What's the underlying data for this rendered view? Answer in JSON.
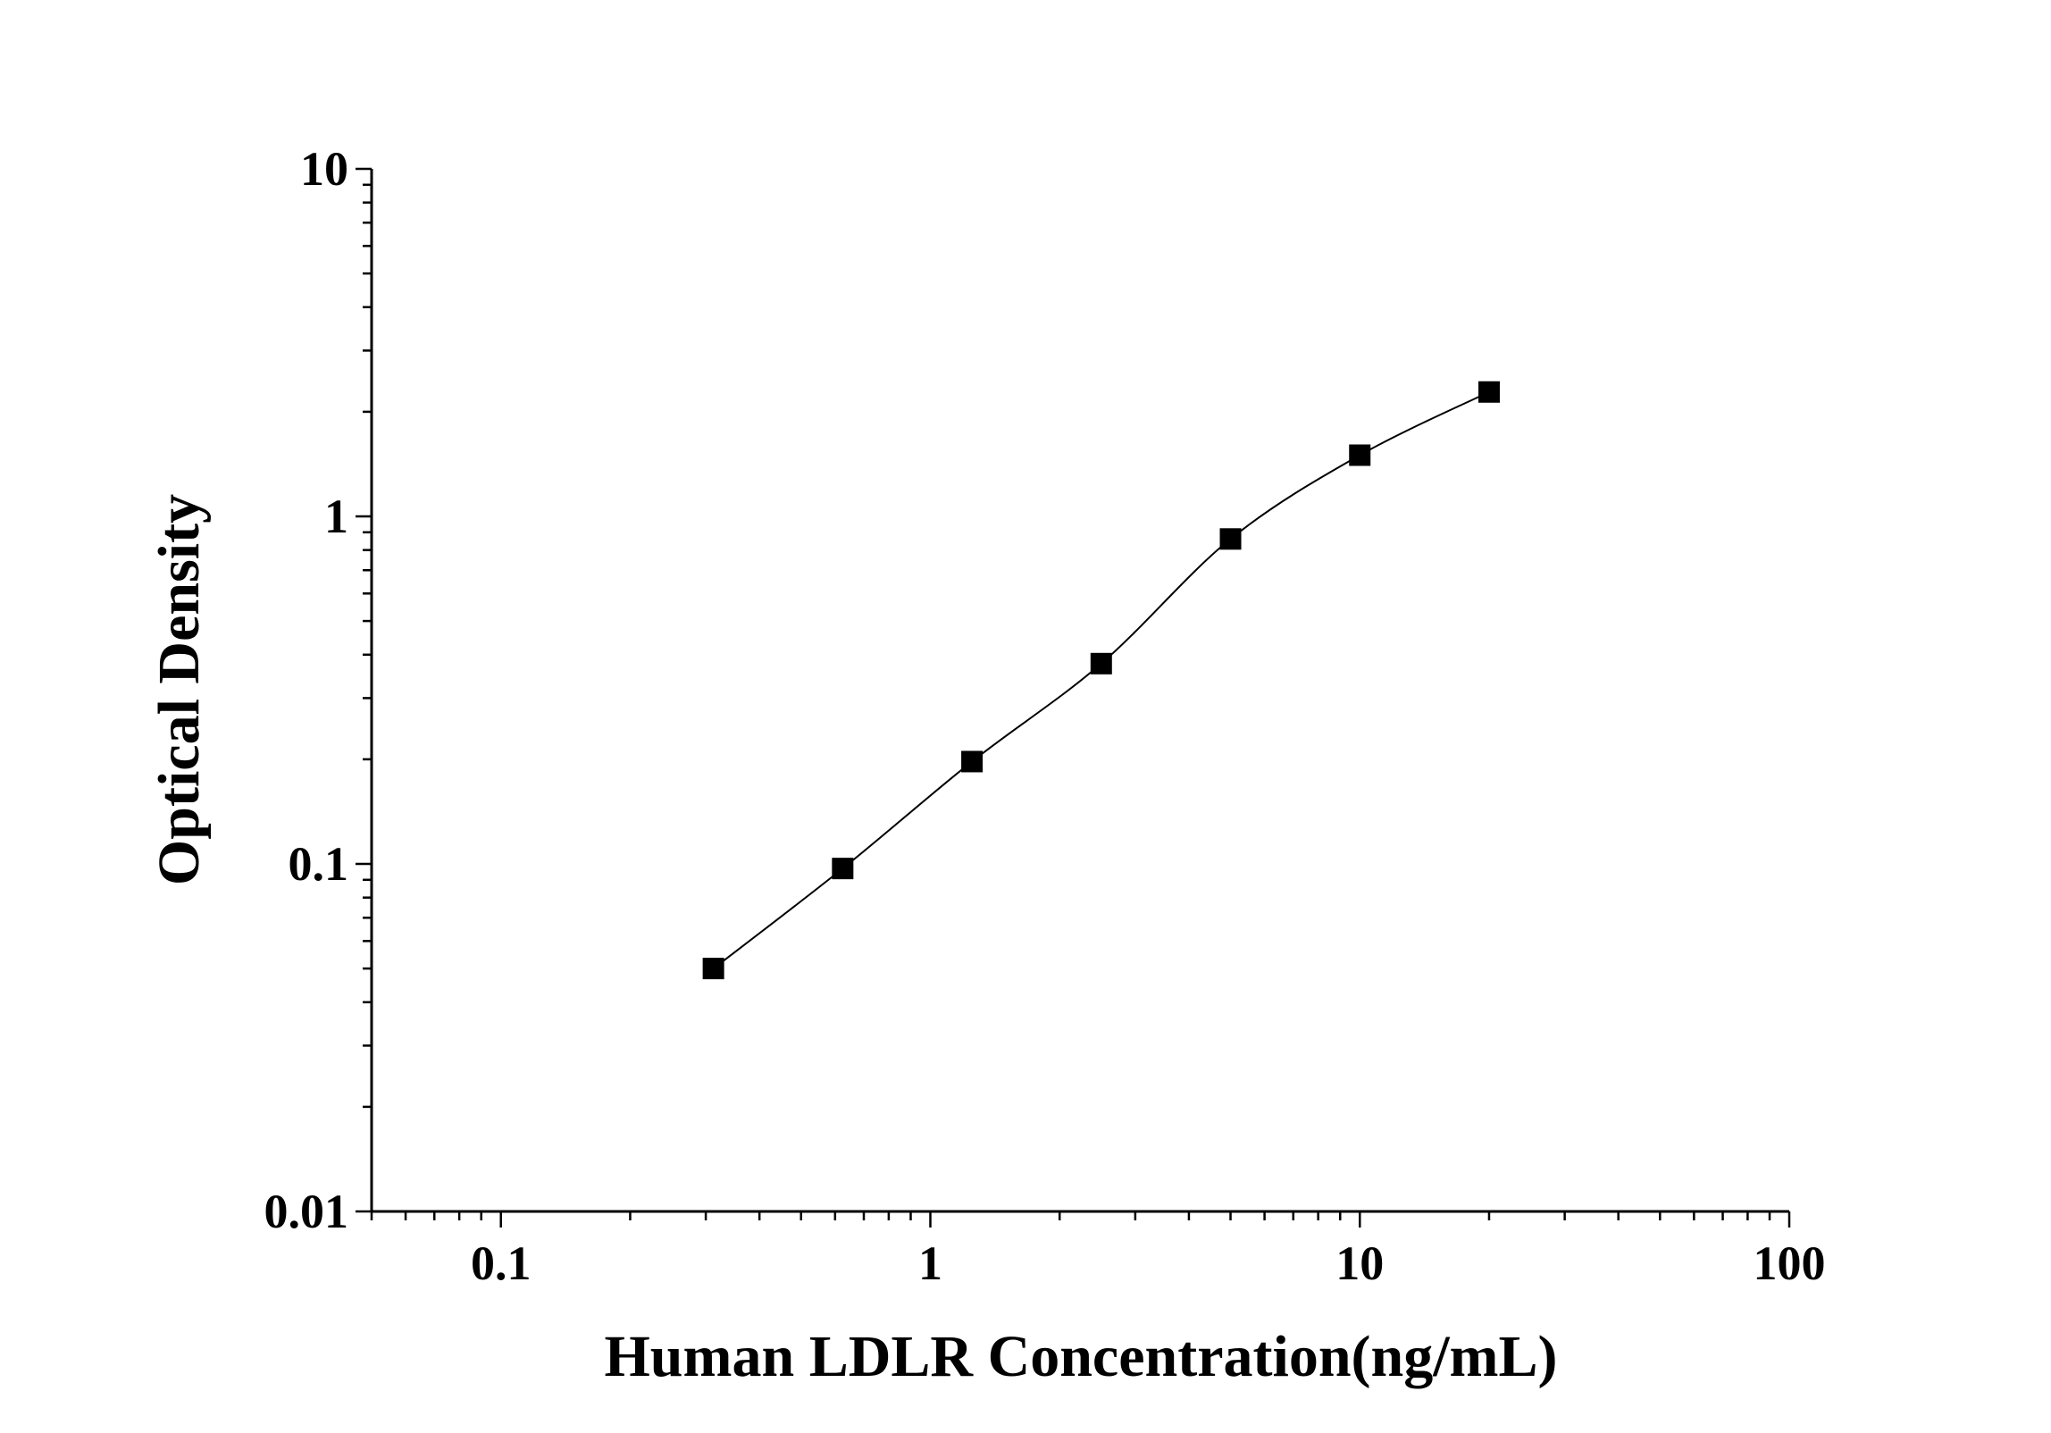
{
  "chart_data": {
    "type": "line",
    "title": "",
    "xlabel": "Human LDLR Concentration(ng/mL)",
    "ylabel": "Optical Density",
    "xscale": "log",
    "yscale": "log",
    "xlim": [
      0.05,
      100
    ],
    "ylim": [
      0.01,
      10
    ],
    "xticks": [
      0.1,
      1,
      10,
      100
    ],
    "xtick_labels": [
      "0.1",
      "1",
      "10",
      "100"
    ],
    "yticks": [
      0.01,
      0.1,
      1,
      10
    ],
    "ytick_labels": [
      "0.01",
      "0.1",
      "1",
      "10"
    ],
    "grid": false,
    "legend": "none",
    "marker": "square",
    "color": "#000000",
    "series": [
      {
        "x": [
          0.3125,
          0.625,
          1.25,
          2.5,
          5,
          10,
          20
        ],
        "y": [
          0.05,
          0.097,
          0.197,
          0.377,
          0.861,
          1.5,
          2.28
        ]
      }
    ]
  }
}
